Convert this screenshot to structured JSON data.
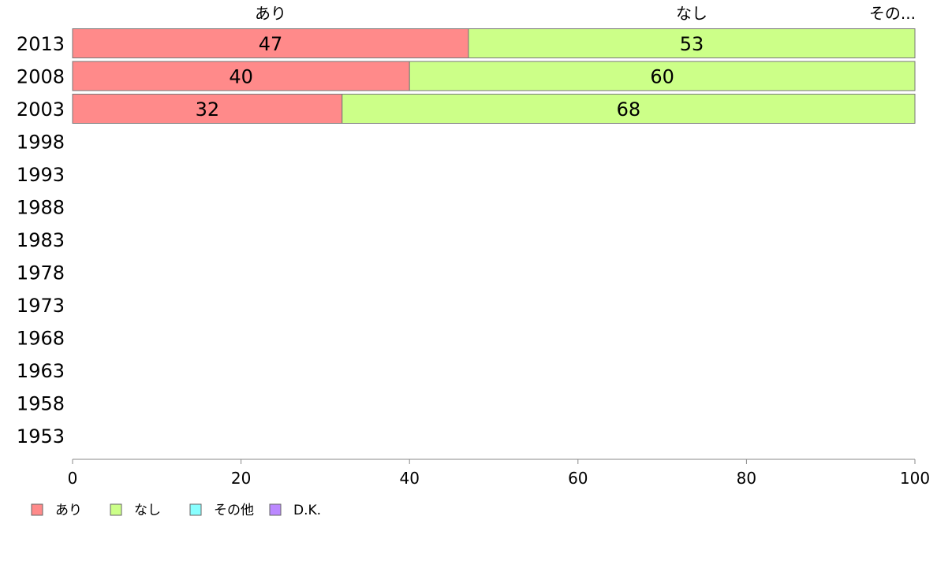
{
  "chart_data": {
    "type": "bar",
    "orientation": "horizontal",
    "stacked": true,
    "categories": [
      "2013",
      "2008",
      "2003",
      "1998",
      "1993",
      "1988",
      "1983",
      "1978",
      "1973",
      "1968",
      "1963",
      "1958",
      "1953"
    ],
    "series": [
      {
        "name": "あり",
        "color": "#ff8a8a",
        "values": [
          47,
          40,
          32,
          null,
          null,
          null,
          null,
          null,
          null,
          null,
          null,
          null,
          null
        ]
      },
      {
        "name": "なし",
        "color": "#ccff88",
        "values": [
          53,
          60,
          68,
          null,
          null,
          null,
          null,
          null,
          null,
          null,
          null,
          null,
          null
        ]
      },
      {
        "name": "その他",
        "color": "#88ffff",
        "values": [
          0,
          0,
          0,
          null,
          null,
          null,
          null,
          null,
          null,
          null,
          null,
          null,
          null
        ]
      },
      {
        "name": "D.K.",
        "color": "#bb88ff",
        "values": [
          0,
          0,
          0,
          null,
          null,
          null,
          null,
          null,
          null,
          null,
          null,
          null,
          null
        ]
      }
    ],
    "top_labels": [
      "あり",
      "なし",
      "その..."
    ],
    "xlim": [
      0,
      100
    ],
    "xticks": [
      0,
      20,
      40,
      60,
      80,
      100
    ],
    "grid": false,
    "legend_position": "bottom-left"
  }
}
